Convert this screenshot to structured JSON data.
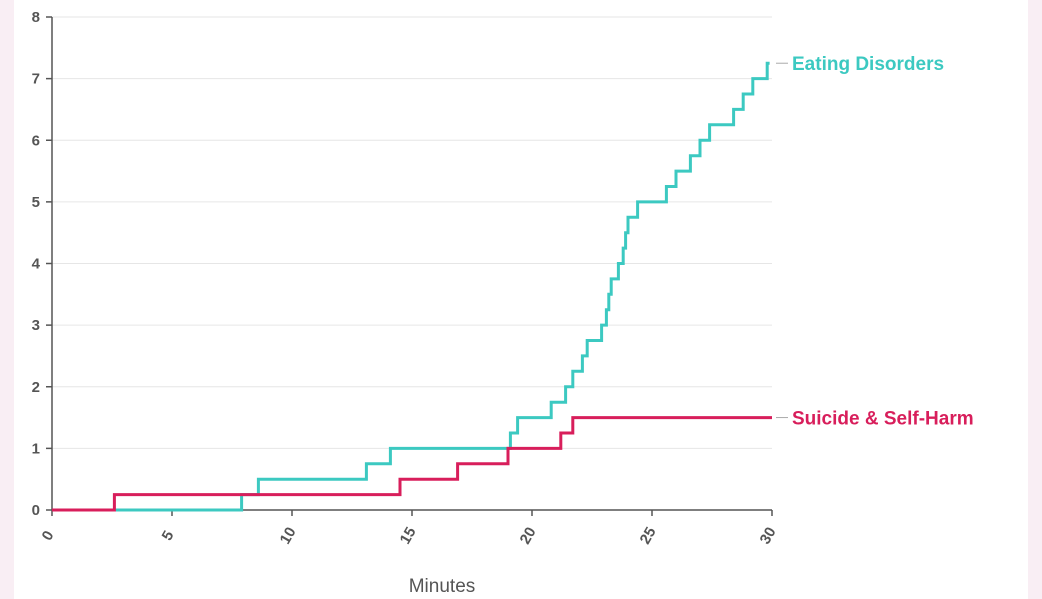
{
  "chart_data": {
    "type": "line",
    "step": true,
    "xlabel": "Minutes",
    "ylabel": "",
    "xlim": [
      0,
      30
    ],
    "ylim": [
      0,
      8
    ],
    "x_ticks": [
      0,
      5,
      10,
      15,
      20,
      25,
      30
    ],
    "y_ticks": [
      0,
      1,
      2,
      3,
      4,
      5,
      6,
      7,
      8
    ],
    "grid": "horizontal",
    "series": [
      {
        "name": "Eating Disorders",
        "color": "#3cc9c1",
        "points": [
          [
            0,
            0
          ],
          [
            7.9,
            0
          ],
          [
            7.9,
            0.25
          ],
          [
            8.6,
            0.25
          ],
          [
            8.6,
            0.5
          ],
          [
            13.1,
            0.5
          ],
          [
            13.1,
            0.75
          ],
          [
            14.1,
            0.75
          ],
          [
            14.1,
            1.0
          ],
          [
            19.1,
            1.0
          ],
          [
            19.1,
            1.25
          ],
          [
            19.4,
            1.25
          ],
          [
            19.4,
            1.5
          ],
          [
            20.8,
            1.5
          ],
          [
            20.8,
            1.75
          ],
          [
            21.4,
            1.75
          ],
          [
            21.4,
            2.0
          ],
          [
            21.7,
            2.0
          ],
          [
            21.7,
            2.25
          ],
          [
            22.1,
            2.25
          ],
          [
            22.1,
            2.5
          ],
          [
            22.3,
            2.5
          ],
          [
            22.3,
            2.75
          ],
          [
            22.9,
            2.75
          ],
          [
            22.9,
            3.0
          ],
          [
            23.1,
            3.0
          ],
          [
            23.1,
            3.25
          ],
          [
            23.2,
            3.25
          ],
          [
            23.2,
            3.5
          ],
          [
            23.3,
            3.5
          ],
          [
            23.3,
            3.75
          ],
          [
            23.6,
            3.75
          ],
          [
            23.6,
            4.0
          ],
          [
            23.8,
            4.0
          ],
          [
            23.8,
            4.25
          ],
          [
            23.9,
            4.25
          ],
          [
            23.9,
            4.5
          ],
          [
            24.0,
            4.5
          ],
          [
            24.0,
            4.75
          ],
          [
            24.4,
            4.75
          ],
          [
            24.4,
            5.0
          ],
          [
            25.6,
            5.0
          ],
          [
            25.6,
            5.25
          ],
          [
            26.0,
            5.25
          ],
          [
            26.0,
            5.5
          ],
          [
            26.6,
            5.5
          ],
          [
            26.6,
            5.75
          ],
          [
            27.0,
            5.75
          ],
          [
            27.0,
            6.0
          ],
          [
            27.4,
            6.0
          ],
          [
            27.4,
            6.25
          ],
          [
            28.4,
            6.25
          ],
          [
            28.4,
            6.5
          ],
          [
            28.8,
            6.5
          ],
          [
            28.8,
            6.75
          ],
          [
            29.2,
            6.75
          ],
          [
            29.2,
            7.0
          ],
          [
            29.8,
            7.0
          ],
          [
            29.8,
            7.25
          ],
          [
            29.9,
            7.25
          ]
        ],
        "end_value": 7.25
      },
      {
        "name": "Suicide & Self-Harm",
        "color": "#d81e5b",
        "points": [
          [
            0,
            0
          ],
          [
            2.6,
            0
          ],
          [
            2.6,
            0.25
          ],
          [
            14.5,
            0.25
          ],
          [
            14.5,
            0.5
          ],
          [
            16.9,
            0.5
          ],
          [
            16.9,
            0.75
          ],
          [
            19.0,
            0.75
          ],
          [
            19.0,
            1.0
          ],
          [
            21.2,
            1.0
          ],
          [
            21.2,
            1.25
          ],
          [
            21.7,
            1.25
          ],
          [
            21.7,
            1.5
          ],
          [
            30,
            1.5
          ]
        ],
        "end_value": 1.5
      }
    ]
  }
}
